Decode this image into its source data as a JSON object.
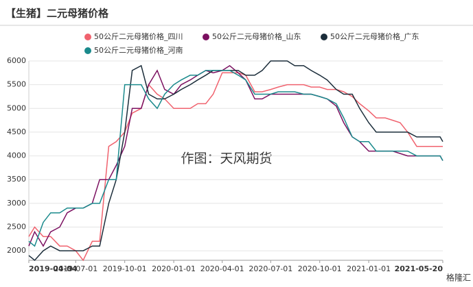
{
  "chart_data": {
    "type": "line",
    "title": "【生猪】二元母猪价格",
    "x": [
      "2019-04-04",
      "2019-04-15",
      "2019-05-01",
      "2019-05-15",
      "2019-06-01",
      "2019-06-15",
      "2019-07-01",
      "2019-07-15",
      "2019-08-01",
      "2019-08-15",
      "2019-09-01",
      "2019-09-15",
      "2019-10-01",
      "2019-10-15",
      "2019-11-01",
      "2019-11-15",
      "2019-12-01",
      "2019-12-15",
      "2020-01-01",
      "2020-01-15",
      "2020-02-01",
      "2020-02-15",
      "2020-03-01",
      "2020-03-15",
      "2020-04-01",
      "2020-04-15",
      "2020-05-01",
      "2020-05-15",
      "2020-06-01",
      "2020-06-15",
      "2020-07-01",
      "2020-07-15",
      "2020-08-01",
      "2020-08-15",
      "2020-09-01",
      "2020-09-15",
      "2020-10-01",
      "2020-10-15",
      "2020-11-01",
      "2020-11-15",
      "2020-12-01",
      "2020-12-15",
      "2021-01-01",
      "2021-01-15",
      "2021-02-01",
      "2021-02-15",
      "2021-03-01",
      "2021-03-15",
      "2021-04-01",
      "2021-04-15",
      "2021-05-01",
      "2021-05-15",
      "2021-05-20"
    ],
    "series": [
      {
        "name": "50公斤二元母猪价格_四川",
        "color": "#f0626e",
        "values": [
          2300,
          2500,
          2300,
          2300,
          2100,
          2100,
          2000,
          1800,
          2200,
          2200,
          4200,
          4300,
          4500,
          4900,
          5000,
          5500,
          5300,
          5200,
          5000,
          5000,
          5000,
          5100,
          5100,
          5300,
          5750,
          5750,
          5750,
          5700,
          5350,
          5350,
          5400,
          5450,
          5500,
          5500,
          5500,
          5450,
          5450,
          5400,
          5400,
          5350,
          5250,
          5100,
          4950,
          4800,
          4800,
          4750,
          4700,
          4500,
          4200,
          4200,
          4200,
          4200,
          4200
        ]
      },
      {
        "name": "50公斤二元母猪价格_山东",
        "color": "#7b1060",
        "values": [
          2100,
          2400,
          2100,
          2400,
          2500,
          2800,
          2900,
          2900,
          3000,
          3500,
          3500,
          3800,
          4200,
          5000,
          5000,
          5500,
          5800,
          5400,
          5300,
          5500,
          5600,
          5700,
          5800,
          5750,
          5800,
          5900,
          5750,
          5600,
          5200,
          5200,
          5300,
          5300,
          5300,
          5300,
          5300,
          5300,
          5250,
          5200,
          5050,
          4700,
          4400,
          4300,
          4100,
          4100,
          4100,
          4100,
          4050,
          4000,
          4000,
          4000,
          4000,
          4000,
          3900
        ]
      },
      {
        "name": "50公斤二元母猪价格_广东",
        "color": "#1b2d3a",
        "values": [
          1900,
          1800,
          2000,
          2100,
          2000,
          2000,
          2000,
          2000,
          2100,
          2100,
          3000,
          3500,
          4500,
          5800,
          5900,
          5300,
          5200,
          5200,
          5300,
          5400,
          5500,
          5600,
          5700,
          5800,
          5800,
          5800,
          5800,
          5700,
          5700,
          5800,
          6000,
          6000,
          6000,
          5900,
          5900,
          5800,
          5700,
          5600,
          5400,
          5300,
          5300,
          5000,
          4700,
          4500,
          4500,
          4500,
          4500,
          4500,
          4400,
          4400,
          4400,
          4400,
          4300
        ]
      },
      {
        "name": "50公斤二元母猪价格_河南",
        "color": "#1a8a8c",
        "values": [
          2200,
          2100,
          2600,
          2800,
          2800,
          2900,
          2900,
          2900,
          3000,
          3000,
          3500,
          3500,
          5500,
          5500,
          5500,
          5200,
          5000,
          5300,
          5500,
          5600,
          5700,
          5700,
          5800,
          5800,
          5800,
          5800,
          5700,
          5600,
          5300,
          5300,
          5300,
          5350,
          5350,
          5350,
          5300,
          5300,
          5250,
          5200,
          5100,
          4800,
          4400,
          4300,
          4300,
          4100,
          4100,
          4100,
          4100,
          4100,
          4000,
          4000,
          4000,
          4000,
          3900
        ]
      }
    ],
    "ylim": [
      1800,
      6000
    ],
    "yticks": [
      2000,
      2500,
      3000,
      3500,
      4000,
      4500,
      5000,
      5500,
      6000
    ],
    "xlim": [
      "2019-04-04",
      "2021-05-20"
    ],
    "xticks": [
      "2019-04-04",
      "2019-07-01",
      "2019-10-01",
      "2020-01-01",
      "2020-04-01",
      "2020-07-01",
      "2020-10-01",
      "2021-01-01",
      "2021-05-20"
    ],
    "grid": true,
    "annotations": [
      "作图：天风期货",
      "格隆汇"
    ]
  }
}
